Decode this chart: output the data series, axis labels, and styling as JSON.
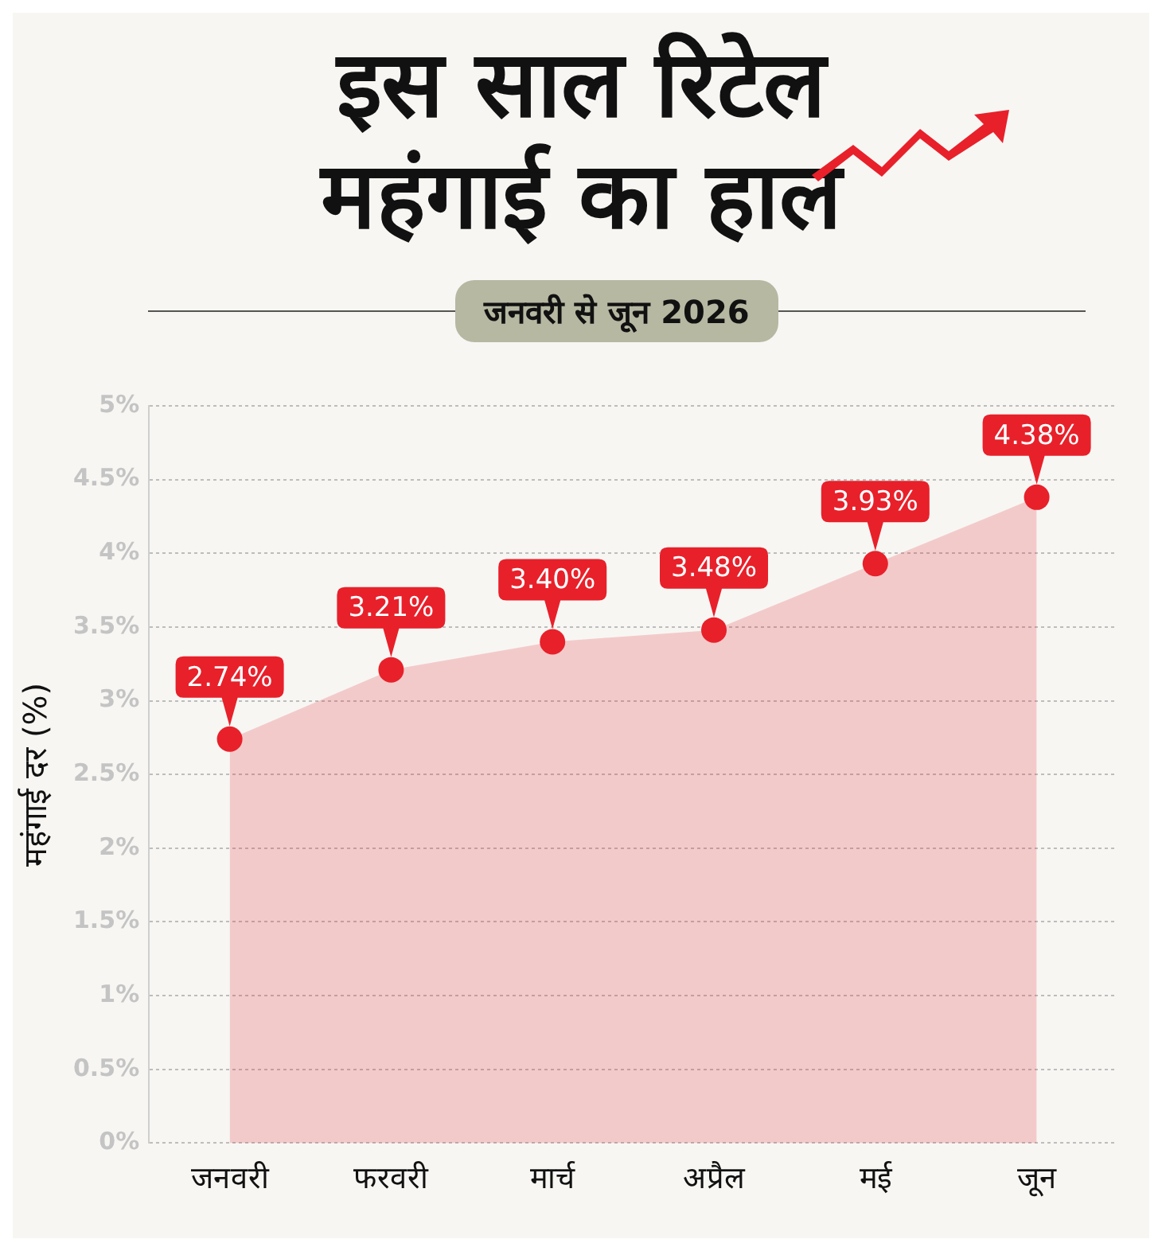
{
  "chart_data": {
    "type": "area",
    "title": "इस साल रिटेल महंगाई का हाल",
    "subtitle": "जनवरी से जून 2026",
    "ylabel": "महंगाई दर (%)",
    "categories": [
      "जनवरी",
      "फरवरी",
      "मार्च",
      "अप्रैल",
      "मई",
      "जून"
    ],
    "series": [
      {
        "color": "#e8202a",
        "values": [
          2.74,
          3.21,
          3.4,
          3.48,
          3.93,
          4.38
        ],
        "value_labels": [
          "2.74%",
          "3.21%",
          "3.40%",
          "3.48%",
          "3.93%",
          "4.38%"
        ]
      }
    ],
    "ylim": [
      0,
      5
    ],
    "yticks": [
      {
        "value": 0,
        "label": "0%"
      },
      {
        "value": 0.5,
        "label": "0.5%"
      },
      {
        "value": 1,
        "label": "1%"
      },
      {
        "value": 1.5,
        "label": "1.5%"
      },
      {
        "value": 2,
        "label": "2%"
      },
      {
        "value": 2.5,
        "label": "2.5%"
      },
      {
        "value": 3,
        "label": "3%"
      },
      {
        "value": 3.5,
        "label": "3.5%"
      },
      {
        "value": 4,
        "label": "4%"
      },
      {
        "value": 4.5,
        "label": "4.5%"
      },
      {
        "value": 5,
        "label": "5%"
      }
    ],
    "grid": "y",
    "marker": "circle",
    "legend": false
  }
}
